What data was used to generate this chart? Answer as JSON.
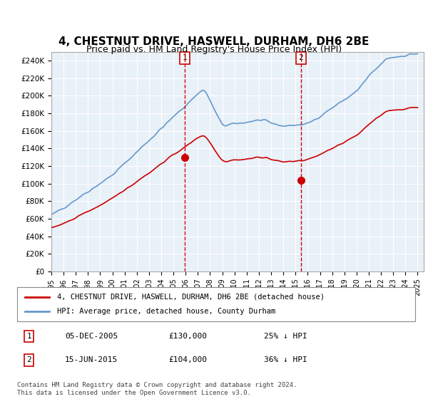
{
  "title": "4, CHESTNUT DRIVE, HASWELL, DURHAM, DH6 2BE",
  "subtitle": "Price paid vs. HM Land Registry's House Price Index (HPI)",
  "title_fontsize": 11,
  "subtitle_fontsize": 9,
  "ylabel_ticks": [
    "£0",
    "£20K",
    "£40K",
    "£60K",
    "£80K",
    "£100K",
    "£120K",
    "£140K",
    "£160K",
    "£180K",
    "£200K",
    "£220K",
    "£240K"
  ],
  "ytick_values": [
    0,
    20000,
    40000,
    60000,
    80000,
    100000,
    120000,
    140000,
    160000,
    180000,
    200000,
    220000,
    240000
  ],
  "ylim": [
    0,
    250000
  ],
  "xlim_start": 1995.0,
  "xlim_end": 2025.5,
  "hpi_color": "#6699cc",
  "price_color": "#cc0000",
  "vline_color": "#cc0000",
  "bg_color": "#e8f0f8",
  "marker1_x": 2005.92,
  "marker1_y": 130000,
  "marker2_x": 2015.45,
  "marker2_y": 104000,
  "sale1_label": "1",
  "sale2_label": "2",
  "legend_line1": "4, CHESTNUT DRIVE, HASWELL, DURHAM, DH6 2BE (detached house)",
  "legend_line2": "HPI: Average price, detached house, County Durham",
  "table_row1": [
    "1",
    "05-DEC-2005",
    "£130,000",
    "25% ↓ HPI"
  ],
  "table_row2": [
    "2",
    "15-JUN-2015",
    "£104,000",
    "36% ↓ HPI"
  ],
  "footnote": "Contains HM Land Registry data © Crown copyright and database right 2024.\nThis data is licensed under the Open Government Licence v3.0.",
  "xtick_years": [
    1995,
    1996,
    1997,
    1998,
    1999,
    2000,
    2001,
    2002,
    2003,
    2004,
    2005,
    2006,
    2007,
    2008,
    2009,
    2010,
    2011,
    2012,
    2013,
    2014,
    2015,
    2016,
    2017,
    2018,
    2019,
    2020,
    2021,
    2022,
    2023,
    2024,
    2025
  ]
}
